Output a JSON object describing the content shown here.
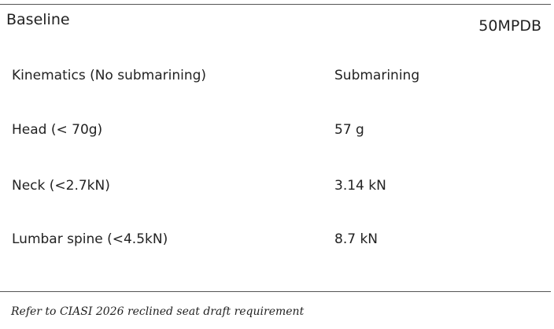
{
  "header": {
    "title": "Baseline",
    "tag": "50MPDB"
  },
  "table": {
    "rows": [
      [
        "Kinematics (No submarining)",
        "Submarining"
      ],
      [
        "Head (< 70g)",
        "57 g"
      ],
      [
        "Neck (<2.7kN)",
        "3.14 kN"
      ],
      [
        "Lumbar spine (<4.5kN)",
        "8.7 kN"
      ]
    ]
  },
  "footnote": "Refer to CIASI 2026 reclined seat draft requirement"
}
